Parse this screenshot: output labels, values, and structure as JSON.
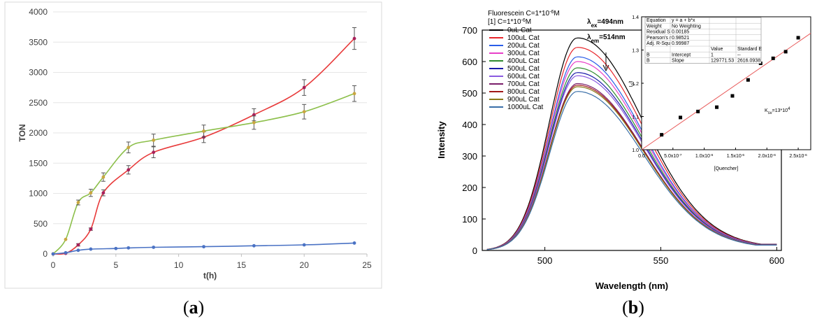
{
  "chart_data": [
    {
      "type": "line",
      "panel": "a",
      "xlabel": "t(h)",
      "ylabel": "TON",
      "xlim": [
        0,
        25
      ],
      "ylim": [
        0,
        4000
      ],
      "xticks": [
        "0",
        "5",
        "10",
        "15",
        "20",
        "25"
      ],
      "yticks": [
        "0",
        "500",
        "1000",
        "1500",
        "2000",
        "2500",
        "3000",
        "3500",
        "4000"
      ],
      "series": [
        {
          "name": "red",
          "color": "#e83a3a",
          "x": [
            0,
            1,
            2,
            3,
            4,
            6,
            8,
            12,
            16,
            20,
            24
          ],
          "values": [
            0,
            10,
            150,
            410,
            1010,
            1390,
            1680,
            1930,
            2300,
            2750,
            3560
          ],
          "errors": [
            0,
            0,
            20,
            20,
            50,
            70,
            90,
            90,
            100,
            130,
            180
          ]
        },
        {
          "name": "green",
          "color": "#8cbf4a",
          "x": [
            0,
            1,
            2,
            3,
            4,
            6,
            8,
            12,
            16,
            20,
            24
          ],
          "values": [
            0,
            240,
            850,
            1010,
            1270,
            1760,
            1880,
            2030,
            2170,
            2350,
            2650
          ],
          "errors": [
            0,
            0,
            40,
            60,
            70,
            90,
            100,
            100,
            110,
            120,
            130
          ]
        },
        {
          "name": "blue",
          "color": "#4a72c4",
          "x": [
            0,
            1,
            2,
            3,
            5,
            6,
            8,
            12,
            16,
            20,
            24
          ],
          "values": [
            0,
            20,
            60,
            80,
            90,
            100,
            110,
            120,
            135,
            150,
            180
          ],
          "errors": [
            0,
            0,
            0,
            0,
            0,
            0,
            0,
            0,
            0,
            0,
            0
          ]
        }
      ]
    },
    {
      "type": "line",
      "panel": "b",
      "xlabel": "Wavelength (nm)",
      "ylabel": "Intensity",
      "xlim": [
        473,
        602
      ],
      "ylim": [
        0,
        700
      ],
      "xticks": [
        "500",
        "550",
        "600"
      ],
      "yticks": [
        "0",
        "100",
        "200",
        "300",
        "400",
        "500",
        "600",
        "700"
      ],
      "legend_title_1": "Fluorescein C=1*10",
      "legend_title_1_sup": "-6",
      "legend_title_1_end": "M",
      "legend_title_2": "[1] C=1*10",
      "legend_title_2_sup": "-6",
      "legend_title_2_end": "M",
      "lambda_ex_label": "λ",
      "lambda_ex_sub": "ex",
      "lambda_ex_value": "=494nm",
      "lambda_em_label": "λ",
      "lambda_em_sub": "em",
      "lambda_em_value": "=514nm",
      "peak_wavelength": 514,
      "series": [
        {
          "name": "0uL Cat",
          "color": "#000000",
          "peak": 675
        },
        {
          "name": "100uL Cat",
          "color": "#e8262b",
          "peak": 645
        },
        {
          "name": "200uL Cat",
          "color": "#2a5de8",
          "peak": 615
        },
        {
          "name": "300uL Cat",
          "color": "#e83fc8",
          "peak": 600
        },
        {
          "name": "400uL Cat",
          "color": "#2f8a2f",
          "peak": 580
        },
        {
          "name": "500uL Cat",
          "color": "#1a1aa8",
          "peak": 565
        },
        {
          "name": "600uL Cat",
          "color": "#8a5ae0",
          "peak": 555
        },
        {
          "name": "700uL Cat",
          "color": "#7a1e6a",
          "peak": 530
        },
        {
          "name": "800uL Cat",
          "color": "#a01818",
          "peak": 525
        },
        {
          "name": "900uL Cat",
          "color": "#8a7a1a",
          "peak": 520
        },
        {
          "name": "1000uL Cat",
          "color": "#3a6fa8",
          "peak": 505
        }
      ],
      "inset": {
        "type": "scatter",
        "xlabel": "[Quencher]",
        "ylabel_main": "I",
        "ylabel_sub": "0",
        "ylabel_end": "/I",
        "xlim": [
          0,
          2.7e-06
        ],
        "ylim": [
          1.0,
          1.4
        ],
        "xticks": [
          {
            "pre": "0.0",
            "sup": ""
          },
          {
            "pre": "5.0x10",
            "sup": "-7"
          },
          {
            "pre": "1.0x10",
            "sup": "-6"
          },
          {
            "pre": "1.5x10",
            "sup": "-6"
          },
          {
            "pre": "2.0x10",
            "sup": "-6"
          },
          {
            "pre": "2.5x10",
            "sup": "-6"
          }
        ],
        "yticks": [
          "1.0",
          "1.1",
          "1.2",
          "1.3",
          "1.4"
        ],
        "x": [
          3.2e-07,
          6.2e-07,
          9e-07,
          1.2e-06,
          1.45e-06,
          1.7e-06,
          1.9e-06,
          2.1e-06,
          2.3e-06,
          2.5e-06
        ],
        "values": [
          1.045,
          1.097,
          1.115,
          1.128,
          1.162,
          1.21,
          1.26,
          1.275,
          1.295,
          1.337
        ],
        "fit": {
          "intercept": 1.0,
          "slope": 129771.53
        },
        "ksv_label": "K",
        "ksv_sub": "sv",
        "ksv_value": "=13*10",
        "ksv_sup": "4",
        "table": [
          [
            "Equation",
            "y = a + b*x",
            "",
            ""
          ],
          [
            "Weight",
            "No Weighting",
            "",
            ""
          ],
          [
            "Residual S",
            "0.00185",
            "",
            ""
          ],
          [
            "Pearson's r",
            "0.98521",
            "",
            ""
          ],
          [
            "Adj. R-Squ",
            "0.99987",
            "",
            ""
          ],
          [
            "",
            "",
            "Value",
            "Standard E"
          ],
          [
            "B",
            "Intercept",
            "1",
            "--"
          ],
          [
            "B",
            "Slope",
            "129771.53",
            "2616.0938"
          ]
        ]
      }
    }
  ],
  "captions": {
    "a_open": "(",
    "a_letter": "a",
    "a_close": ")",
    "b_open": "(",
    "b_letter": "b",
    "b_close": ")"
  }
}
